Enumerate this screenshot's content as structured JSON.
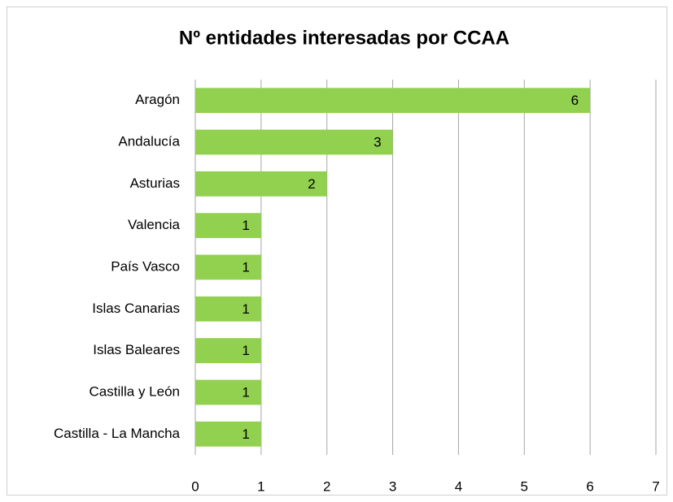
{
  "chart_data": {
    "type": "bar",
    "orientation": "horizontal",
    "title": "Nº entidades interesadas por CCAA",
    "categories": [
      "Aragón",
      "Andalucía",
      "Asturias",
      "Valencia",
      "País Vasco",
      "Islas Canarias",
      "Islas Baleares",
      "Castilla y León",
      "Castilla - La Mancha"
    ],
    "values": [
      6,
      3,
      2,
      1,
      1,
      1,
      1,
      1,
      1
    ],
    "color": "#92d050",
    "xlim": [
      0,
      7
    ],
    "xticks": [
      0,
      1,
      2,
      3,
      4,
      5,
      6,
      7
    ],
    "grid": true,
    "data_labels": true
  }
}
